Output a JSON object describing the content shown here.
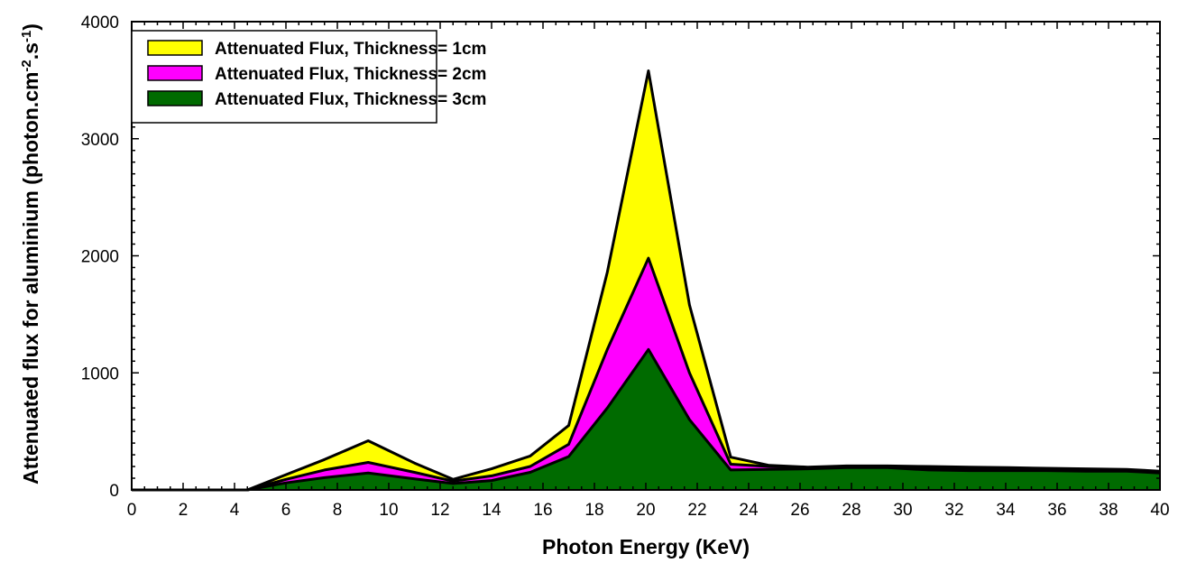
{
  "chart_data": {
    "type": "area",
    "xlabel": "Photon Energy (KeV)",
    "ylabel": "Attenuated flux for aluminium (photon.cm",
    "ylabel_sup1": "-2",
    "ylabel_mid": ".s",
    "ylabel_sup2": "-1",
    "ylabel_end": ")",
    "xlim": [
      0,
      40
    ],
    "ylim": [
      0,
      4000
    ],
    "x_ticks": [
      0,
      2,
      4,
      6,
      8,
      10,
      12,
      14,
      16,
      18,
      20,
      22,
      24,
      26,
      28,
      30,
      32,
      34,
      36,
      38,
      40
    ],
    "y_ticks": [
      0,
      1000,
      2000,
      3000,
      4000
    ],
    "legend_position": "top-left",
    "x": [
      0,
      4.5,
      6,
      7.5,
      9.2,
      11,
      12.5,
      14,
      15.5,
      17,
      18.5,
      20.1,
      21.7,
      23.3,
      24.8,
      26.3,
      27.8,
      29.4,
      31,
      32.6,
      34.1,
      35.6,
      37.1,
      38.7,
      40
    ],
    "series": [
      {
        "name": "Attenuated Flux, Thickness= 1cm",
        "color": "#ffff00",
        "values": [
          0,
          0,
          130,
          260,
          420,
          230,
          90,
          180,
          290,
          550,
          1860,
          3580,
          1580,
          280,
          210,
          195,
          205,
          205,
          200,
          195,
          190,
          185,
          180,
          175,
          160
        ]
      },
      {
        "name": "Attenuated Flux, Thickness= 2cm",
        "color": "#ff00ff",
        "values": [
          0,
          0,
          90,
          170,
          235,
          150,
          75,
          120,
          200,
          390,
          1200,
          1980,
          1000,
          220,
          200,
          190,
          200,
          200,
          190,
          185,
          180,
          175,
          170,
          170,
          150
        ]
      },
      {
        "name": "Attenuated Flux, Thickness= 3cm",
        "color": "#006b00",
        "values": [
          0,
          0,
          60,
          105,
          145,
          95,
          55,
          80,
          150,
          285,
          700,
          1200,
          600,
          170,
          175,
          180,
          190,
          190,
          170,
          165,
          165,
          165,
          160,
          160,
          145
        ]
      }
    ]
  }
}
